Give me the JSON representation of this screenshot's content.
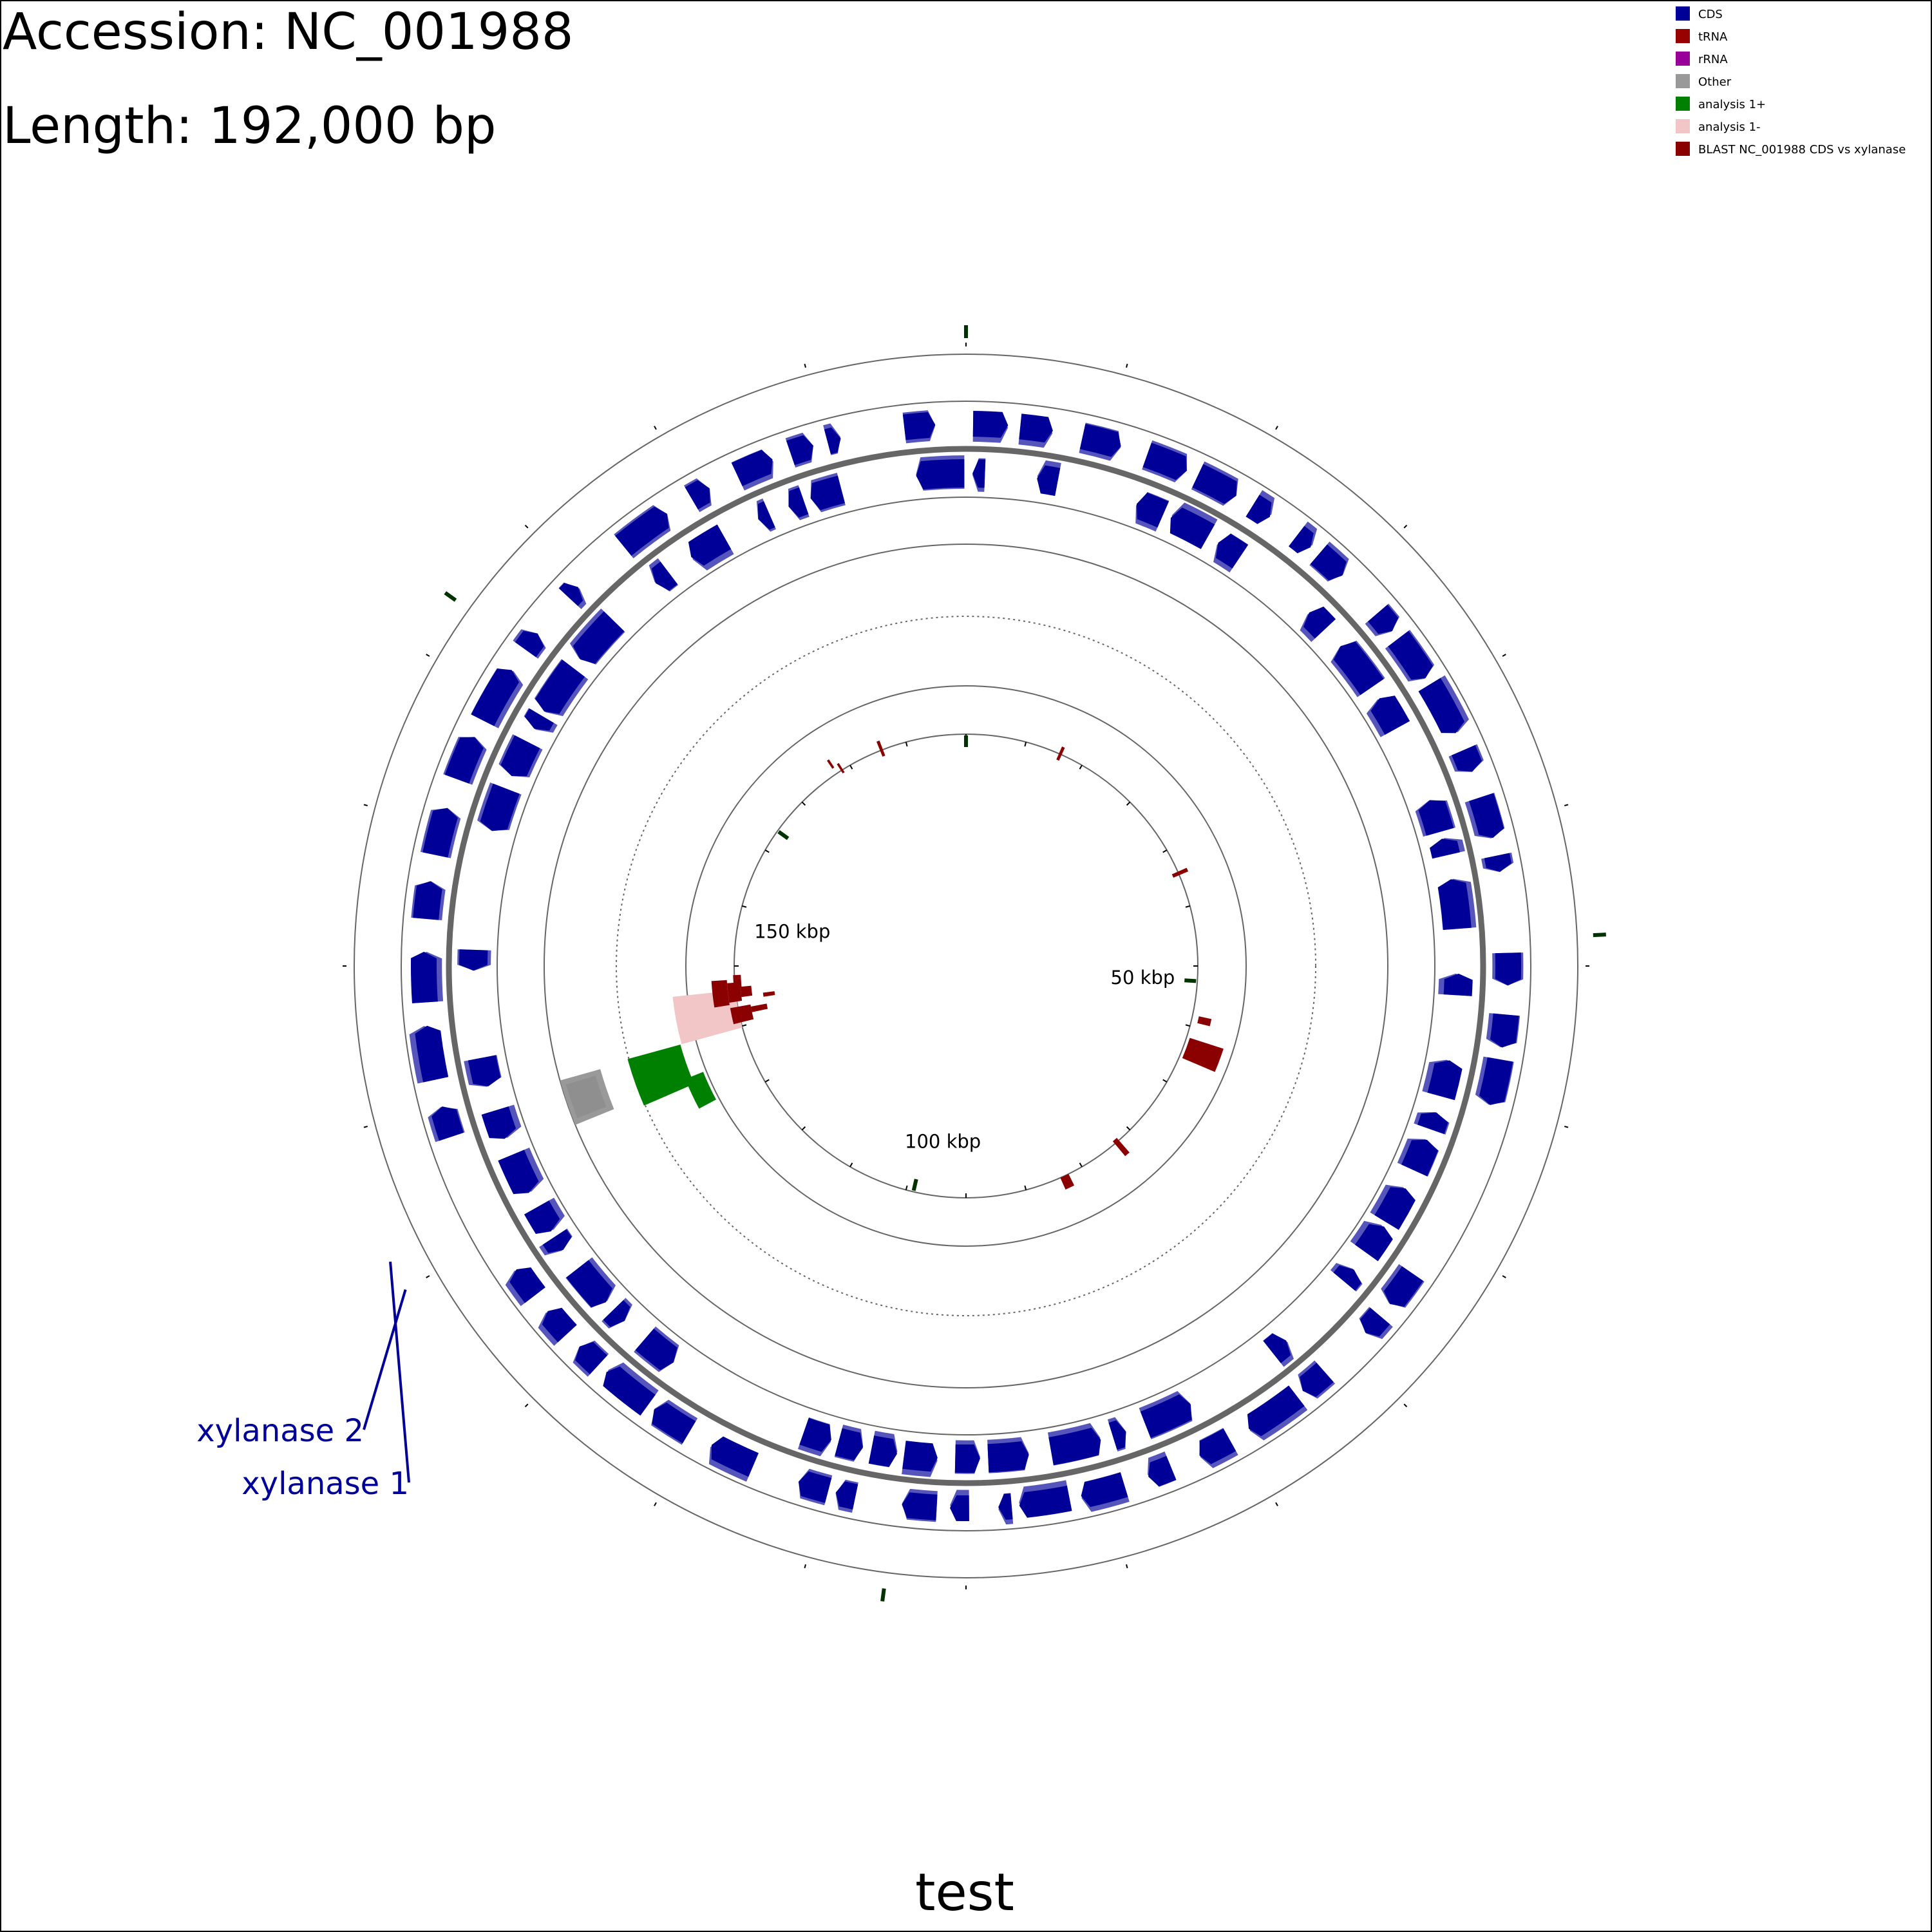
{
  "header": {
    "accession_label": "Accession: NC_001988",
    "length_label": "Length: 192,000 bp"
  },
  "footer": {
    "title": "test"
  },
  "legend": {
    "items": [
      {
        "label": "CDS",
        "color": "#000099"
      },
      {
        "label": "tRNA",
        "color": "#990000"
      },
      {
        "label": "rRNA",
        "color": "#990099"
      },
      {
        "label": "Other",
        "color": "#999999"
      },
      {
        "label": "analysis 1+",
        "color": "#008000"
      },
      {
        "label": "analysis 1-",
        "color": "#f2c6c6"
      },
      {
        "label": "BLAST NC_001988 CDS vs xylanase",
        "color": "#8b0000"
      }
    ]
  },
  "map": {
    "genome_length_bp": 192000,
    "tick_labels": [
      {
        "label": "50 kbp",
        "position_kb": 50
      },
      {
        "label": "100 kbp",
        "position_kb": 100
      },
      {
        "label": "150 kbp",
        "position_kb": 150
      }
    ],
    "labeled_features": [
      {
        "label": "xylanase 2",
        "position_kb": 128.0,
        "color": "#000099"
      },
      {
        "label": "xylanase 1",
        "position_kb": 129.5,
        "color": "#000099"
      }
    ],
    "colors": {
      "cds": "#000099",
      "cds_light": "#5555bb",
      "other": "#999999",
      "analysis_plus": "#008000",
      "analysis_minus": "#f2c6c6",
      "blast": "#8b0000",
      "marker": "#003300",
      "backbone": "#666666",
      "ring": "#666666"
    }
  }
}
